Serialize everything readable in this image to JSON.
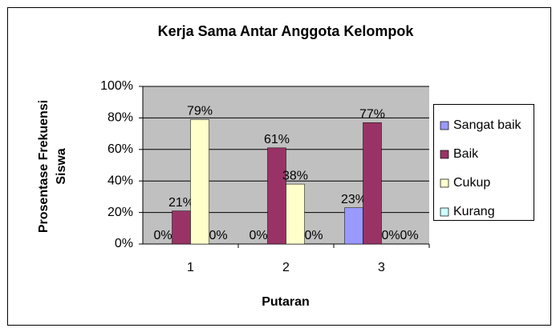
{
  "chart_data": {
    "type": "bar",
    "title": "Kerja Sama Antar Anggota Kelompok",
    "x_label": "Putaran",
    "y_label": [
      "Prosentase Frekuensi",
      "Siswa"
    ],
    "categories": [
      "1",
      "2",
      "3"
    ],
    "series": [
      {
        "name": "Sangat baik",
        "color": "#9999ff",
        "values": [
          0,
          0,
          23
        ],
        "value_labels": [
          "0%",
          "0%",
          "23%"
        ]
      },
      {
        "name": "Baik",
        "color": "#993366",
        "values": [
          21,
          61,
          77
        ],
        "value_labels": [
          "21%",
          "61%",
          "77%"
        ]
      },
      {
        "name": "Cukup",
        "color": "#ffffcc",
        "values": [
          79,
          38,
          0
        ],
        "value_labels": [
          "79%",
          "38%",
          "0%"
        ]
      },
      {
        "name": "Kurang",
        "color": "#ccffff",
        "values": [
          0,
          0,
          0
        ],
        "value_labels": [
          "0%",
          "0%",
          "0%"
        ]
      }
    ],
    "ylim": [
      0,
      100
    ],
    "yticks": [
      {
        "value": 0,
        "label": "0%"
      },
      {
        "value": 20,
        "label": "20%"
      },
      {
        "value": 40,
        "label": "40%"
      },
      {
        "value": 60,
        "label": "60%"
      },
      {
        "value": 80,
        "label": "80%"
      },
      {
        "value": 100,
        "label": "100%"
      }
    ],
    "grid": true,
    "legend": "right",
    "plot_background": "#c0c0c0"
  }
}
